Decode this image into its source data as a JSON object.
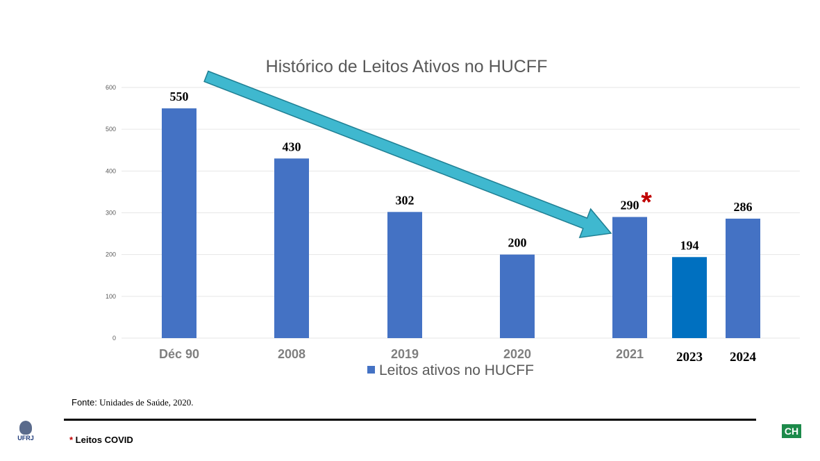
{
  "chart_data": {
    "type": "bar",
    "title": "Histórico de Leitos Ativos no HUCFF",
    "categories": [
      "Déc 90",
      "2008",
      "2019",
      "2020",
      "2021",
      "2023",
      "2024"
    ],
    "values": [
      550,
      430,
      302,
      200,
      290,
      194,
      286
    ],
    "data_labels": [
      "550",
      "430",
      "302",
      "200",
      "290",
      "194",
      "286"
    ],
    "annotations": [
      {
        "category": "2021",
        "text": "*"
      }
    ],
    "ylim": [
      0,
      600
    ],
    "yticks": [
      "0",
      "100",
      "200",
      "300",
      "400",
      "500",
      "600"
    ],
    "grid": true,
    "legend": {
      "position": "bottom",
      "entries": [
        "Leitos ativos no HUCFF"
      ]
    },
    "colors": {
      "bar": "#4472c4",
      "bar_highlight": "#0070c0",
      "arrow": "#3fb8cf",
      "asterisk": "#c00000"
    }
  },
  "footer": {
    "fonte_label": "Fonte:",
    "fonte_text": " Unidades de Saúde, 2020.",
    "asterisk": "*",
    "covid_note": " Leitos COVID",
    "ufrj_logo": "UFRJ",
    "ch_logo": "CH"
  }
}
